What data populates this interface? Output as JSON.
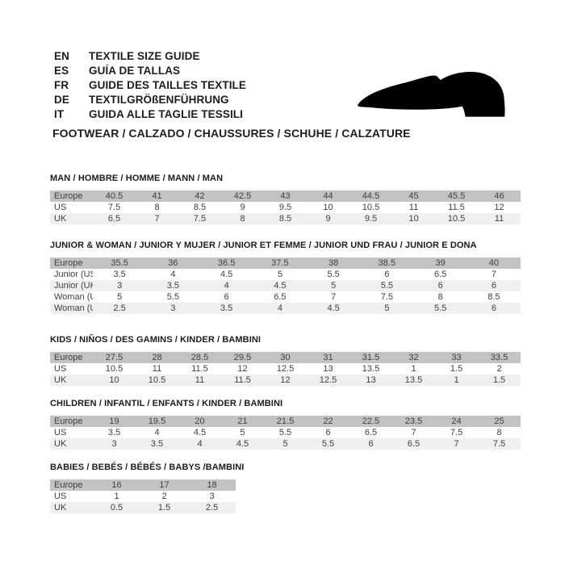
{
  "header": {
    "languages": [
      {
        "code": "EN",
        "label": "TEXTILE SIZE GUIDE"
      },
      {
        "code": "ES",
        "label": "GUÍA DE TALLAS"
      },
      {
        "code": "FR",
        "label": "GUIDE DES TAILLES TEXTILE"
      },
      {
        "code": "DE",
        "label": "TEXTILGRÖßENFÜHRUNG"
      },
      {
        "code": "IT",
        "label": "GUIDA ALLE TAGLIE TESSILI"
      }
    ],
    "category_line": "FOOTWEAR / CALZADO / CHAUSSURES / SCHUHE / CALZATURE",
    "shoe_icon": "dress-shoe-silhouette"
  },
  "colors": {
    "header_row_bg": "#c3c3c3",
    "alt_row_bg": "#efefef",
    "row_bg": "#ffffff",
    "cell_text": "#3f3f3f",
    "title_text": "#1c1c1c",
    "shoe": "#000000"
  },
  "sections": [
    {
      "id": "man",
      "title": "MAN / HOMBRE / HOMME / MANN / MAN",
      "rows": [
        {
          "label": "Europe",
          "values": [
            "40.5",
            "41",
            "42",
            "42.5",
            "43",
            "44",
            "44.5",
            "45",
            "45.5",
            "46"
          ]
        },
        {
          "label": "US",
          "values": [
            "7.5",
            "8",
            "8.5",
            "9",
            "9.5",
            "10",
            "10.5",
            "11",
            "11.5",
            "12"
          ]
        },
        {
          "label": "UK",
          "values": [
            "6.5",
            "7",
            "7.5",
            "8",
            "8.5",
            "9",
            "9.5",
            "10",
            "10.5",
            "11"
          ]
        }
      ]
    },
    {
      "id": "junior-woman",
      "title": "JUNIOR & WOMAN / JUNIOR Y MUJER / JUNIOR ET FEMME / JUNIOR UND FRAU / JUNIOR E DONA",
      "rows": [
        {
          "label": "Europe",
          "values": [
            "35.5",
            "36",
            "36.5",
            "37.5",
            "38",
            "38.5",
            "39",
            "40"
          ]
        },
        {
          "label": "Junior (US)",
          "values": [
            "3.5",
            "4",
            "4.5",
            "5",
            "5.5",
            "6",
            "6.5",
            "7"
          ]
        },
        {
          "label": "Junior (UK)",
          "values": [
            "3",
            "3.5",
            "4",
            "4.5",
            "5",
            "5.5",
            "6",
            "6"
          ]
        },
        {
          "label": "Woman (US)",
          "values": [
            "5",
            "5.5",
            "6",
            "6.5",
            "7",
            "7.5",
            "8",
            "8.5"
          ]
        },
        {
          "label": "Woman (UK)",
          "values": [
            "2.5",
            "3",
            "3.5",
            "4",
            "4.5",
            "5",
            "5.5",
            "6"
          ]
        }
      ]
    },
    {
      "id": "kids",
      "title": "KIDS / NIÑOS / DES GAMINS / KINDER / BAMBINI",
      "rows": [
        {
          "label": "Europe",
          "values": [
            "27.5",
            "28",
            "28.5",
            "29.5",
            "30",
            "31",
            "31.5",
            "32",
            "33",
            "33.5"
          ]
        },
        {
          "label": "US",
          "values": [
            "10.5",
            "11",
            "11.5",
            "12",
            "12.5",
            "13",
            "13.5",
            "1",
            "1.5",
            "2"
          ]
        },
        {
          "label": "UK",
          "values": [
            "10",
            "10.5",
            "11",
            "11.5",
            "12",
            "12.5",
            "13",
            "13.5",
            "1",
            "1.5"
          ]
        }
      ]
    },
    {
      "id": "children",
      "title": "CHILDREN / INFANTIL / ENFANTS / KINDER / BAMBINI",
      "rows": [
        {
          "label": "Europe",
          "values": [
            "19",
            "19.5",
            "20",
            "21",
            "21.5",
            "22",
            "22.5",
            "23.5",
            "24",
            "25"
          ]
        },
        {
          "label": "US",
          "values": [
            "3.5",
            "4",
            "4.5",
            "5",
            "5.5",
            "6",
            "6.5",
            "7",
            "7.5",
            "8"
          ]
        },
        {
          "label": "UK",
          "values": [
            "3",
            "3.5",
            "4",
            "4.5",
            "5",
            "5.5",
            "6",
            "6.5",
            "7",
            "7.5"
          ]
        }
      ]
    },
    {
      "id": "babies",
      "title": "BABIES  / BEBÉS / BÉBÉS / BABYS /BAMBINI",
      "rows": [
        {
          "label": "Europe",
          "values": [
            "16",
            "17",
            "18"
          ]
        },
        {
          "label": "US",
          "values": [
            "1",
            "2",
            "3"
          ]
        },
        {
          "label": "UK",
          "values": [
            "0.5",
            "1.5",
            "2.5"
          ]
        }
      ]
    }
  ]
}
